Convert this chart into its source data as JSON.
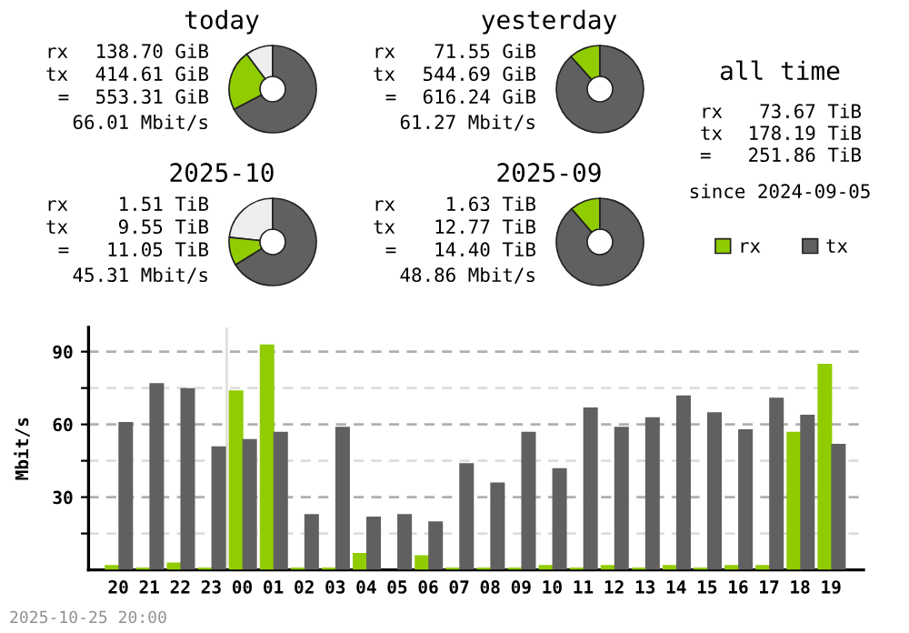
{
  "chart_data": [
    {
      "type": "donut",
      "title": "today",
      "categories": [
        null,
        null,
        null
      ],
      "values": [
        10.2,
        22.5,
        67.3
      ],
      "colors": [
        "#eeeeee",
        "#90cc00",
        "#606060"
      ],
      "annotations": [
        "rx",
        "138.70 GiB",
        "tx",
        "414.61 GiB",
        "=",
        "553.31 GiB",
        "66.01 Mbit/s"
      ]
    },
    {
      "type": "donut",
      "title": "yesterday",
      "categories": [
        null,
        null
      ],
      "values": [
        11.6,
        88.4
      ],
      "colors": [
        "#90cc00",
        "#606060"
      ],
      "annotations": [
        "rx",
        "71.55 GiB",
        "tx",
        "544.69 GiB",
        "=",
        "616.24 GiB",
        "61.27 Mbit/s"
      ]
    },
    {
      "type": "other",
      "title": "all time",
      "annotations": [
        "rx",
        "73.67 TiB",
        "tx",
        "178.19 TiB",
        "=",
        "251.86 TiB",
        "since 2024-09-05"
      ]
    },
    {
      "type": "donut",
      "title": "2025-10",
      "categories": [
        null,
        null,
        null
      ],
      "values": [
        23.3,
        10.5,
        66.2
      ],
      "colors": [
        "#eeeeee",
        "#90cc00",
        "#606060"
      ],
      "annotations": [
        "rx",
        "1.51 TiB",
        "tx",
        "9.55 TiB",
        "=",
        "11.05 TiB",
        "45.31 Mbit/s"
      ]
    },
    {
      "type": "donut",
      "title": "2025-09",
      "categories": [
        null,
        null
      ],
      "values": [
        11.3,
        88.7
      ],
      "colors": [
        "#90cc00",
        "#606060"
      ],
      "annotations": [
        "rx",
        "1.63 TiB",
        "tx",
        "12.77 TiB",
        "=",
        "14.40 TiB",
        "48.86 Mbit/s"
      ]
    },
    {
      "type": "bar",
      "ylabel": "Mbit/s",
      "categories": [
        "20",
        "21",
        "22",
        "23",
        "00",
        "01",
        "02",
        "03",
        "04",
        "05",
        "06",
        "07",
        "08",
        "09",
        "10",
        "11",
        "12",
        "13",
        "14",
        "15",
        "16",
        "17",
        "18",
        "19"
      ],
      "series": [
        {
          "name": "rx",
          "color": "#90cc00",
          "values": [
            2,
            1,
            3,
            1,
            74,
            93,
            1,
            1,
            7,
            0,
            6,
            1,
            1,
            1,
            2,
            1,
            2,
            1,
            2,
            1,
            2,
            2,
            57,
            85
          ]
        },
        {
          "name": "tx",
          "color": "#606060",
          "values": [
            61,
            77,
            75,
            51,
            54,
            57,
            23,
            59,
            22,
            23,
            20,
            44,
            36,
            57,
            42,
            67,
            59,
            63,
            72,
            65,
            58,
            71,
            64,
            52
          ]
        }
      ],
      "ylim": [
        0,
        100
      ],
      "yticks": [
        {
          "value": 15,
          "label": null
        },
        30,
        {
          "value": 45,
          "label": null
        },
        60,
        {
          "value": 75,
          "label": null
        },
        90
      ],
      "grid": "y",
      "legend": "top right",
      "ref_lines": [
        {
          "axis": "x",
          "value": "00",
          "color": "#e0e0e0"
        }
      ],
      "annotations": [
        "2025-10-25 20:00"
      ]
    }
  ]
}
